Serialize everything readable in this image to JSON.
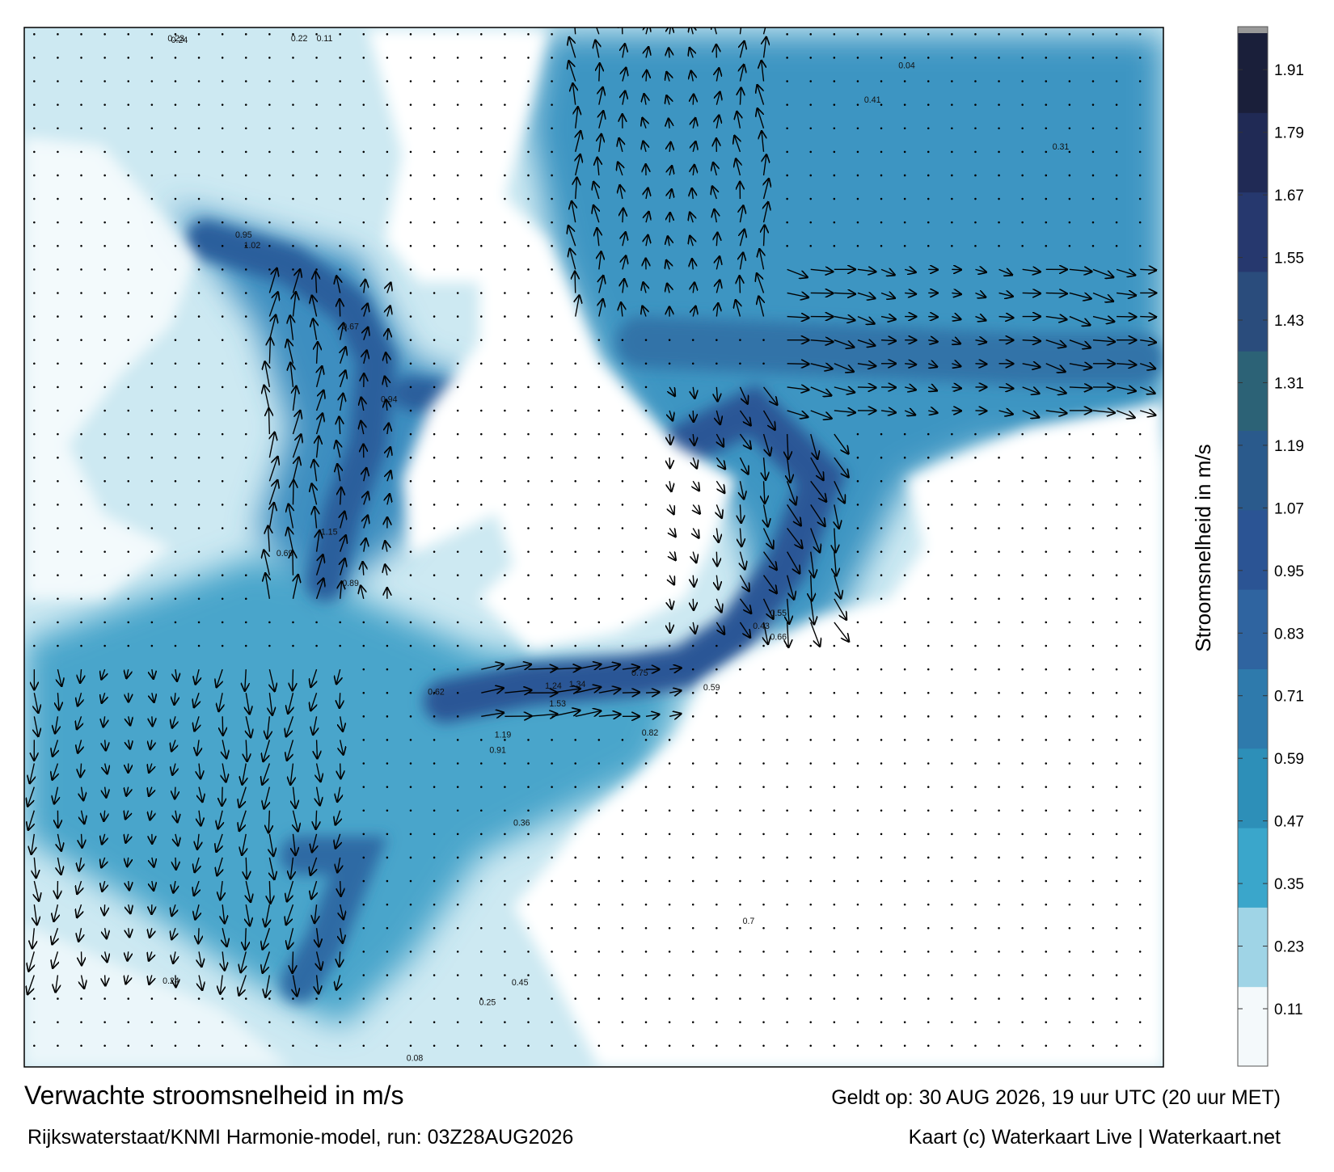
{
  "title": "Verwachte stroomsnelheid in m/s",
  "subtitle": "Rijkswaterstaat/KNMI Harmonie-model, run: 03Z28AUG2026",
  "valid_time": "Geldt op: 30 AUG 2026, 19 uur UTC (20 uur MET)",
  "credit": "Kaart (c) Waterkaart Live | Waterkaart.net",
  "colorbar": {
    "label": "Stroomsnelheid in m/s",
    "lim": [
      0,
      1.98
    ],
    "ticks": [
      0.11,
      0.23,
      0.35,
      0.47,
      0.59,
      0.71,
      0.83,
      0.95,
      1.07,
      1.19,
      1.31,
      1.43,
      1.55,
      1.67,
      1.79,
      1.91
    ],
    "colors": [
      "#f4f9fb",
      "#9fd4e6",
      "#3aa6cb",
      "#2d8fb8",
      "#2e7aac",
      "#2f64a0",
      "#2b5494",
      "#2a5a8c",
      "#2c6276",
      "#2a4c7c",
      "#26386e",
      "#202a55",
      "#1a1f3a"
    ]
  },
  "map_labels": [
    "0.24",
    "0.23",
    "0.22",
    "0.11",
    "0.95",
    "1.02",
    "0.67",
    "0.94",
    "1.15",
    "0.69",
    "0.89",
    "1.24",
    "1.34",
    "1.53",
    "1.19",
    "0.75",
    "0.82",
    "0.91",
    "0.43",
    "0.55",
    "0.66",
    "0.59",
    "0.7",
    "0.62",
    "0.36",
    "0.45",
    "0.41",
    "0.31",
    "0.24",
    "0.04",
    "0.25",
    "0.08"
  ]
}
